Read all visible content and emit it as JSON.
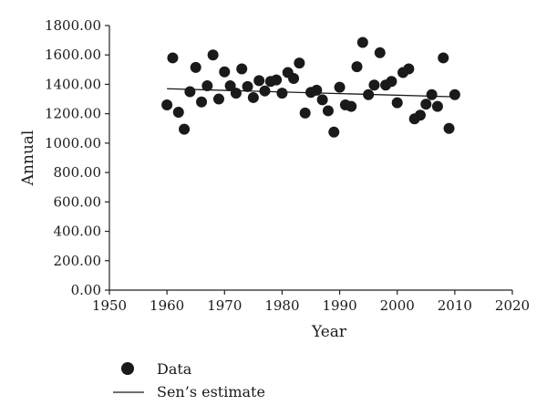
{
  "chart_data": {
    "type": "scatter",
    "title": "",
    "xlabel": "Year",
    "ylabel": "Annual",
    "xlim": [
      1950,
      2020
    ],
    "ylim": [
      0,
      1800
    ],
    "xticks": [
      1950,
      1960,
      1970,
      1980,
      1990,
      2000,
      2010,
      2020
    ],
    "yticks": [
      "0.00",
      "200.00",
      "400.00",
      "600.00",
      "800.00",
      "1000.00",
      "1200.00",
      "1400.00",
      "1600.00",
      "1800.00"
    ],
    "legend_placement": "bottom-left",
    "grid": false,
    "series": [
      {
        "name": "Data",
        "kind": "scatter",
        "color": "#1a1a1a",
        "x": [
          1960,
          1961,
          1962,
          1963,
          1964,
          1965,
          1966,
          1967,
          1968,
          1969,
          1970,
          1971,
          1972,
          1973,
          1974,
          1975,
          1976,
          1977,
          1978,
          1979,
          1980,
          1981,
          1982,
          1983,
          1984,
          1985,
          1986,
          1987,
          1988,
          1989,
          1990,
          1991,
          1992,
          1993,
          1994,
          1995,
          1996,
          1997,
          1998,
          1999,
          2000,
          2001,
          2002,
          2003,
          2004,
          2005,
          2006,
          2007,
          2008,
          2009,
          2010
        ],
        "y": [
          1260,
          1580,
          1210,
          1095,
          1350,
          1515,
          1280,
          1390,
          1600,
          1300,
          1485,
          1390,
          1340,
          1505,
          1385,
          1310,
          1425,
          1355,
          1420,
          1430,
          1340,
          1480,
          1440,
          1545,
          1205,
          1345,
          1360,
          1295,
          1220,
          1075,
          1380,
          1260,
          1250,
          1520,
          1685,
          1330,
          1395,
          1615,
          1395,
          1420,
          1275,
          1480,
          1505,
          1165,
          1190,
          1265,
          1330,
          1250,
          1580,
          1100,
          1330
        ]
      },
      {
        "name": "Sen’s estimate",
        "kind": "line",
        "color": "#1a1a1a",
        "x": [
          1960,
          2010
        ],
        "y": [
          1370,
          1315
        ]
      }
    ]
  }
}
